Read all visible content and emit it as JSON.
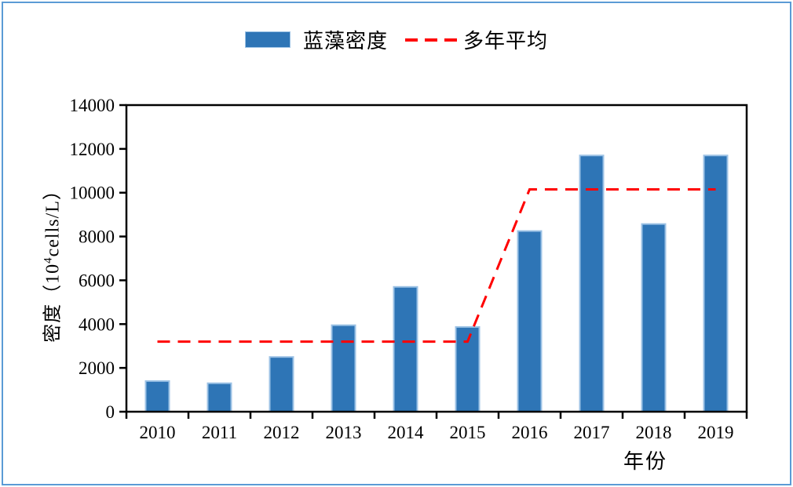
{
  "figure": {
    "border_color": "#5B9BD5",
    "background": "#ffffff"
  },
  "chart_data": {
    "type": "bar",
    "title": "",
    "xlabel": "年份",
    "ylabel": "密度（10⁴cells/L）",
    "ylabel_parts": {
      "pre": "密度（10",
      "sup": "4",
      "post": "cells/L）"
    },
    "categories": [
      "2010",
      "2011",
      "2012",
      "2013",
      "2014",
      "2015",
      "2016",
      "2017",
      "2018",
      "2019"
    ],
    "series": [
      {
        "name": "蓝藻密度",
        "type": "bar",
        "color": "#2E75B6",
        "border_color": "#9CC2E5",
        "values": [
          1400,
          1300,
          2500,
          3950,
          5700,
          3870,
          8250,
          11700,
          8570,
          11700
        ]
      },
      {
        "name": "多年平均",
        "type": "line",
        "style": "dashed",
        "color": "#FF0000",
        "values": [
          3200,
          3200,
          3200,
          3200,
          3200,
          3200,
          10150,
          10150,
          10150,
          10150
        ]
      }
    ],
    "ylim": [
      0,
      14000
    ],
    "ytick_step": 2000,
    "yticks": [
      0,
      2000,
      4000,
      6000,
      8000,
      10000,
      12000,
      14000
    ],
    "axis_color": "#000000",
    "grid": false,
    "legend_position": "top-center"
  }
}
